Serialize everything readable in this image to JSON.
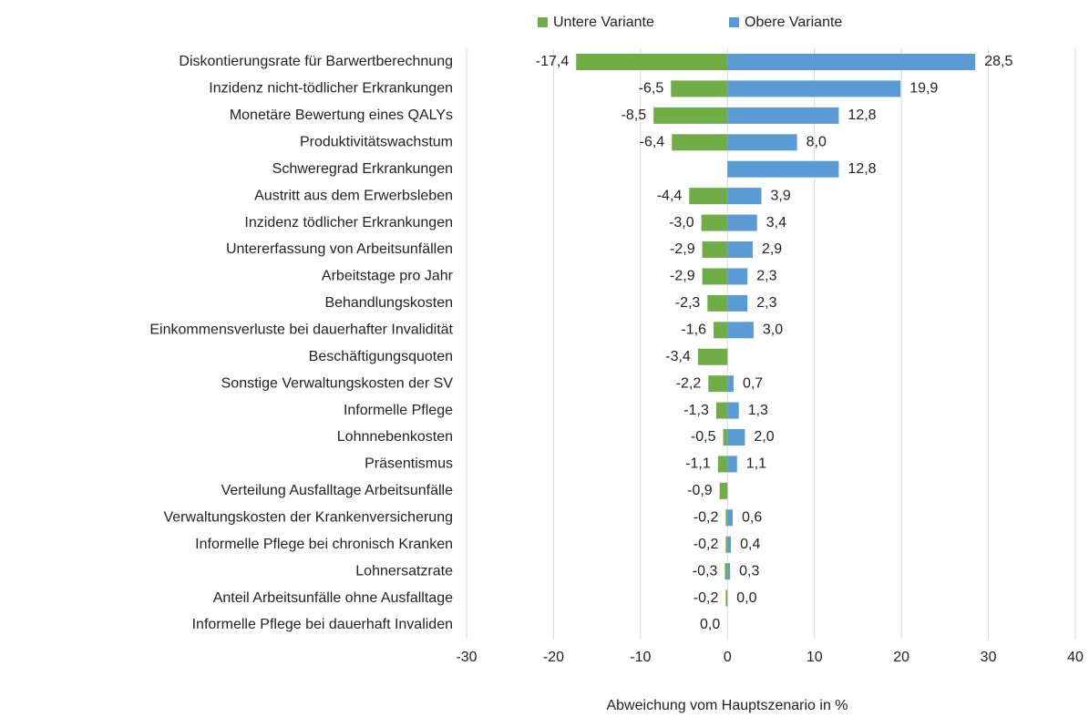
{
  "chart_data": {
    "type": "bar",
    "orientation": "horizontal",
    "x_label": "Abweichung vom Hauptszenario in %",
    "categories": [
      "Diskontierungsrate für Barwertberechnung",
      "Inzidenz nicht-tödlicher Erkrankungen",
      "Monetäre Bewertung eines QALYs",
      "Produktivitätswachstum",
      "Schweregrad Erkrankungen",
      "Austritt aus dem Erwerbsleben",
      "Inzidenz tödlicher Erkrankungen",
      "Untererfassung von Arbeitsunfällen",
      "Arbeitstage pro Jahr",
      "Behandlungskosten",
      "Einkommensverluste bei dauerhafter Invalidität",
      "Beschäftigungsquoten",
      "Sonstige Verwaltungskosten der SV",
      "Informelle Pflege",
      "Lohnnebenkosten",
      "Präsentismus",
      "Verteilung Ausfalltage Arbeitsunfälle",
      "Verwaltungskosten der Krankenversicherung",
      "Informelle Pflege bei chronisch Kranken",
      "Lohnersatzrate",
      "Anteil Arbeitsunfälle ohne Ausfalltage",
      "Informelle Pflege bei dauerhaft Invaliden"
    ],
    "series": [
      {
        "name": "Untere Variante",
        "color": "#70ad47",
        "values": [
          -17.4,
          -6.5,
          -8.5,
          -6.4,
          null,
          -4.4,
          -3.0,
          -2.9,
          -2.9,
          -2.3,
          -1.6,
          -3.4,
          -2.2,
          -1.3,
          -0.5,
          -1.1,
          -0.9,
          -0.2,
          -0.2,
          -0.3,
          -0.2,
          0.0
        ],
        "value_labels": [
          "-17,4",
          "-6,5",
          "-8,5",
          "-6,4",
          null,
          "-4,4",
          "-3,0",
          "-2,9",
          "-2,9",
          "-2,3",
          "-1,6",
          "-3,4",
          "-2,2",
          "-1,3",
          "-0,5",
          "-1,1",
          "-0,9",
          "-0,2",
          "-0,2",
          "-0,3",
          "-0,2",
          "0,0"
        ]
      },
      {
        "name": "Obere Variante",
        "color": "#5b9bd5",
        "values": [
          28.5,
          19.9,
          12.8,
          8.0,
          12.8,
          3.9,
          3.4,
          2.9,
          2.3,
          2.3,
          3.0,
          null,
          0.7,
          1.3,
          2.0,
          1.1,
          null,
          0.6,
          0.4,
          0.3,
          0.0,
          null
        ],
        "value_labels": [
          "28,5",
          "19,9",
          "12,8",
          "8,0",
          "12,8",
          "3,9",
          "3,4",
          "2,9",
          "2,3",
          "2,3",
          "3,0",
          null,
          "0,7",
          "1,3",
          "2,0",
          "1,1",
          null,
          "0,6",
          "0,4",
          "0,3",
          "0,0",
          null
        ]
      }
    ],
    "xlim": [
      -30,
      40
    ],
    "xticks": [
      -30,
      -20,
      -10,
      0,
      10,
      20,
      30,
      40
    ],
    "grid": true,
    "legend": "top"
  }
}
